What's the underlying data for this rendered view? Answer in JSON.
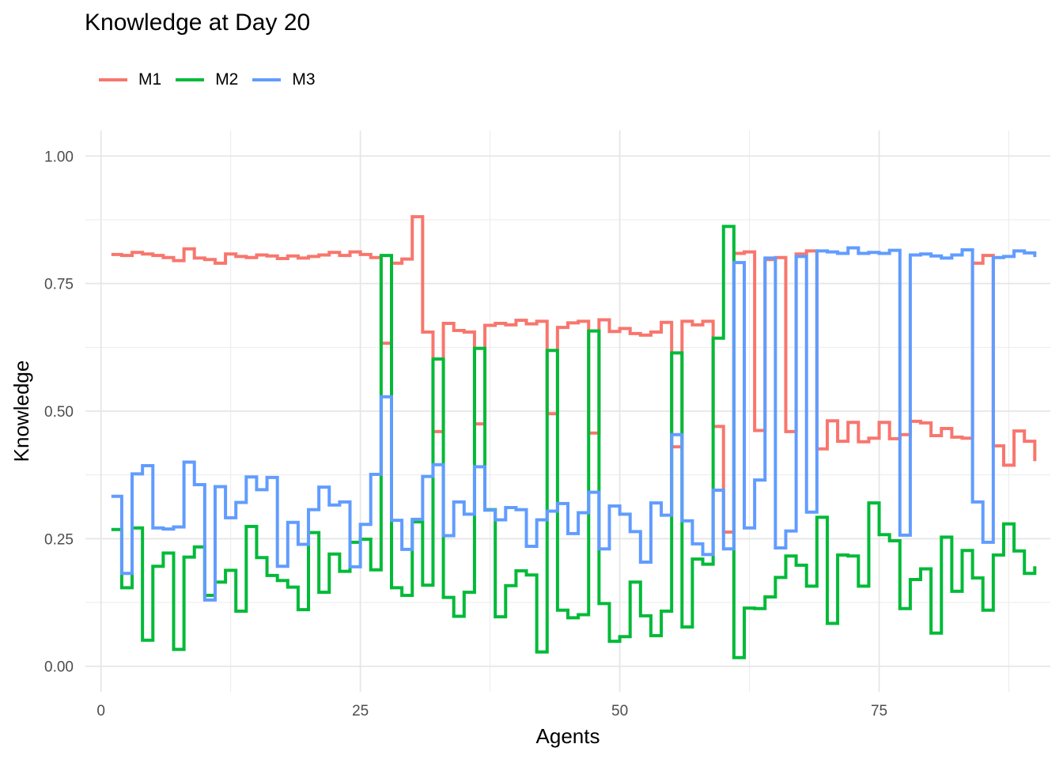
{
  "chart_data": {
    "type": "line",
    "step": true,
    "title": "Knowledge at Day 20",
    "xlabel": "Agents",
    "ylabel": "Knowledge",
    "xlim": [
      -1.5,
      91.5
    ],
    "ylim": [
      -0.05,
      1.05
    ],
    "x_ticks": [
      0,
      25,
      50,
      75
    ],
    "x_tick_labels": [
      "0",
      "25",
      "50",
      "75"
    ],
    "y_ticks": [
      0,
      0.25,
      0.5,
      0.75,
      1.0
    ],
    "y_tick_labels": [
      "0.00",
      "0.25",
      "0.50",
      "0.75",
      "1.00"
    ],
    "grid": true,
    "legend_position": "top-left",
    "series": [
      {
        "name": "M1",
        "color": "#F8766D",
        "values": [
          0.807,
          0.805,
          0.811,
          0.808,
          0.805,
          0.801,
          0.795,
          0.818,
          0.8,
          0.797,
          0.79,
          0.808,
          0.803,
          0.801,
          0.806,
          0.804,
          0.799,
          0.804,
          0.8,
          0.803,
          0.806,
          0.811,
          0.805,
          0.812,
          0.807,
          0.801,
          0.633,
          0.79,
          0.798,
          0.881,
          0.655,
          0.46,
          0.672,
          0.658,
          0.655,
          0.475,
          0.668,
          0.672,
          0.669,
          0.678,
          0.671,
          0.676,
          0.495,
          0.664,
          0.673,
          0.676,
          0.457,
          0.679,
          0.656,
          0.662,
          0.652,
          0.649,
          0.655,
          0.674,
          0.43,
          0.676,
          0.669,
          0.676,
          0.47,
          0.263,
          0.809,
          0.812,
          0.462,
          0.797,
          0.801,
          0.46,
          0.808,
          0.814,
          0.426,
          0.481,
          0.441,
          0.478,
          0.44,
          0.447,
          0.478,
          0.446,
          0.454,
          0.48,
          0.477,
          0.452,
          0.466,
          0.449,
          0.447,
          0.79,
          0.805,
          0.432,
          0.394,
          0.461,
          0.441,
          0.402
        ]
      },
      {
        "name": "M2",
        "color": "#00BA38",
        "values": [
          0.268,
          0.154,
          0.271,
          0.051,
          0.196,
          0.222,
          0.033,
          0.214,
          0.234,
          0.139,
          0.165,
          0.188,
          0.108,
          0.274,
          0.213,
          0.178,
          0.168,
          0.155,
          0.111,
          0.262,
          0.145,
          0.22,
          0.186,
          0.243,
          0.249,
          0.189,
          0.805,
          0.154,
          0.139,
          0.283,
          0.159,
          0.602,
          0.135,
          0.098,
          0.145,
          0.623,
          0.307,
          0.097,
          0.158,
          0.187,
          0.179,
          0.028,
          0.619,
          0.11,
          0.095,
          0.101,
          0.657,
          0.123,
          0.049,
          0.058,
          0.165,
          0.099,
          0.06,
          0.108,
          0.614,
          0.077,
          0.21,
          0.2,
          0.643,
          0.862,
          0.017,
          0.114,
          0.113,
          0.136,
          0.174,
          0.216,
          0.198,
          0.157,
          0.292,
          0.084,
          0.218,
          0.216,
          0.157,
          0.32,
          0.258,
          0.246,
          0.113,
          0.17,
          0.191,
          0.065,
          0.253,
          0.147,
          0.227,
          0.173,
          0.11,
          0.218,
          0.279,
          0.226,
          0.182,
          0.196
        ]
      },
      {
        "name": "M3",
        "color": "#619CFF",
        "values": [
          0.333,
          0.182,
          0.377,
          0.393,
          0.271,
          0.269,
          0.273,
          0.4,
          0.356,
          0.13,
          0.352,
          0.291,
          0.321,
          0.371,
          0.346,
          0.37,
          0.196,
          0.282,
          0.239,
          0.307,
          0.351,
          0.316,
          0.322,
          0.195,
          0.278,
          0.376,
          0.528,
          0.286,
          0.229,
          0.288,
          0.372,
          0.395,
          0.256,
          0.322,
          0.298,
          0.391,
          0.306,
          0.287,
          0.311,
          0.307,
          0.235,
          0.287,
          0.304,
          0.319,
          0.26,
          0.301,
          0.341,
          0.23,
          0.314,
          0.298,
          0.264,
          0.204,
          0.32,
          0.296,
          0.454,
          0.285,
          0.24,
          0.219,
          0.345,
          0.23,
          0.791,
          0.271,
          0.365,
          0.8,
          0.232,
          0.265,
          0.803,
          0.302,
          0.814,
          0.812,
          0.809,
          0.82,
          0.809,
          0.811,
          0.809,
          0.815,
          0.257,
          0.806,
          0.808,
          0.804,
          0.8,
          0.806,
          0.816,
          0.322,
          0.243,
          0.801,
          0.803,
          0.814,
          0.81,
          0.802
        ]
      }
    ]
  }
}
